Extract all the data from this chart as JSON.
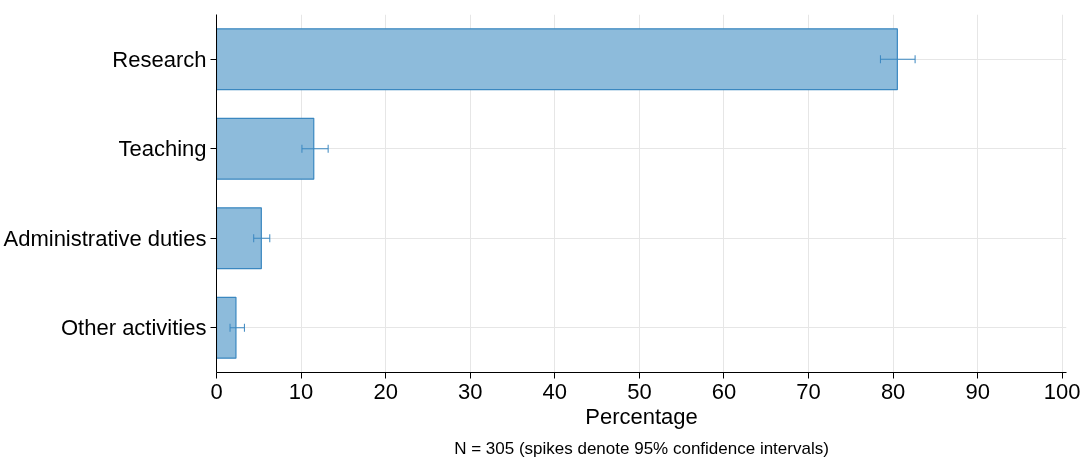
{
  "chart_data": {
    "type": "bar",
    "orientation": "horizontal",
    "xlabel": "Percentage",
    "categories": [
      "Research",
      "Teaching",
      "Administrative duties",
      "Other activities"
    ],
    "values": [
      80.5,
      11.5,
      5.3,
      2.3
    ],
    "errors": [
      [
        78.5,
        82.6
      ],
      [
        10.1,
        13.2
      ],
      [
        4.4,
        6.3
      ],
      [
        1.6,
        3.3
      ]
    ],
    "color": "#8dbbdb",
    "xlim": [
      0,
      100.5
    ],
    "xticks": [
      0,
      10,
      20,
      30,
      40,
      50,
      60,
      70,
      80,
      90,
      100
    ],
    "grid": true,
    "annotations": [
      "N = 305 (spikes denote 95% confidence intervals)"
    ]
  }
}
